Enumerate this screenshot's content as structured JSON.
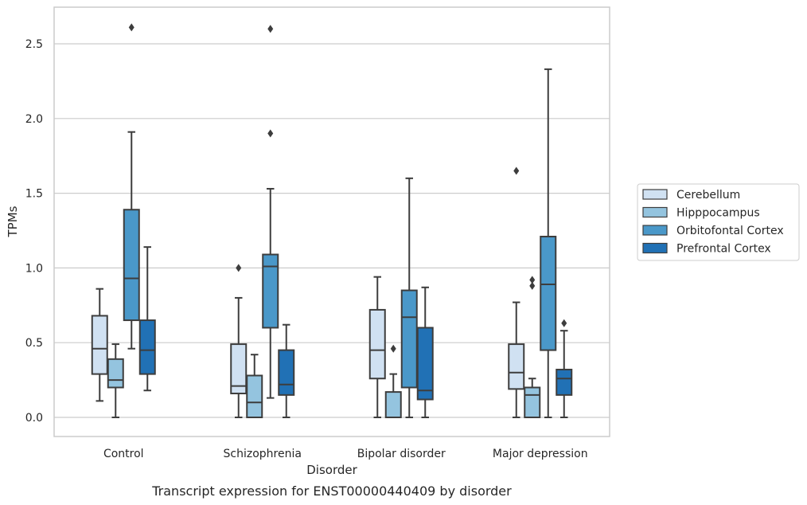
{
  "chart_data": {
    "type": "box",
    "xlabel": "Disorder",
    "ylabel": "TPMs",
    "caption": "Transcript expression for ENST00000440409 by disorder",
    "categories": [
      "Control",
      "Schizophrenia",
      "Bipolar disorder",
      "Major depression"
    ],
    "ylim": [
      -0.13,
      2.75
    ],
    "yticks": [
      0.0,
      0.5,
      1.0,
      1.5,
      2.0,
      2.5
    ],
    "ytick_labels": [
      "0.0",
      "0.5",
      "1.0",
      "1.5",
      "2.0",
      "2.5"
    ],
    "grid": "horizontal",
    "legend_position": "right",
    "series": [
      {
        "name": "Cerebellum",
        "color": "#d0e1f2",
        "boxes": [
          {
            "whisker_low": 0.11,
            "q1": 0.29,
            "median": 0.46,
            "q3": 0.68,
            "whisker_high": 0.86,
            "outliers": []
          },
          {
            "whisker_low": 0.0,
            "q1": 0.16,
            "median": 0.21,
            "q3": 0.49,
            "whisker_high": 0.8,
            "outliers": [
              1.0
            ]
          },
          {
            "whisker_low": 0.0,
            "q1": 0.26,
            "median": 0.45,
            "q3": 0.72,
            "whisker_high": 0.94,
            "outliers": []
          },
          {
            "whisker_low": 0.0,
            "q1": 0.19,
            "median": 0.3,
            "q3": 0.49,
            "whisker_high": 0.77,
            "outliers": [
              1.65
            ]
          }
        ]
      },
      {
        "name": "Hipppocampus",
        "color": "#94c4df",
        "boxes": [
          {
            "whisker_low": 0.0,
            "q1": 0.2,
            "median": 0.25,
            "q3": 0.39,
            "whisker_high": 0.49,
            "outliers": []
          },
          {
            "whisker_low": 0.0,
            "q1": 0.0,
            "median": 0.1,
            "q3": 0.28,
            "whisker_high": 0.42,
            "outliers": []
          },
          {
            "whisker_low": 0.0,
            "q1": 0.0,
            "median": 0.0,
            "q3": 0.17,
            "whisker_high": 0.29,
            "outliers": [
              0.46
            ]
          },
          {
            "whisker_low": 0.0,
            "q1": 0.0,
            "median": 0.15,
            "q3": 0.2,
            "whisker_high": 0.26,
            "outliers": [
              0.88,
              0.92
            ]
          }
        ]
      },
      {
        "name": "Orbitofontal Cortex",
        "color": "#4a98c9",
        "boxes": [
          {
            "whisker_low": 0.46,
            "q1": 0.65,
            "median": 0.93,
            "q3": 1.39,
            "whisker_high": 1.91,
            "outliers": [
              2.61
            ]
          },
          {
            "whisker_low": 0.13,
            "q1": 0.6,
            "median": 1.01,
            "q3": 1.09,
            "whisker_high": 1.53,
            "outliers": [
              1.9,
              2.6
            ]
          },
          {
            "whisker_low": 0.0,
            "q1": 0.2,
            "median": 0.67,
            "q3": 0.85,
            "whisker_high": 1.6,
            "outliers": []
          },
          {
            "whisker_low": 0.0,
            "q1": 0.45,
            "median": 0.89,
            "q3": 1.21,
            "whisker_high": 2.33,
            "outliers": []
          }
        ]
      },
      {
        "name": "Prefrontal Cortex",
        "color": "#2171b5",
        "boxes": [
          {
            "whisker_low": 0.18,
            "q1": 0.29,
            "median": 0.45,
            "q3": 0.65,
            "whisker_high": 1.14,
            "outliers": []
          },
          {
            "whisker_low": 0.0,
            "q1": 0.15,
            "median": 0.22,
            "q3": 0.45,
            "whisker_high": 0.62,
            "outliers": []
          },
          {
            "whisker_low": 0.0,
            "q1": 0.12,
            "median": 0.18,
            "q3": 0.6,
            "whisker_high": 0.87,
            "outliers": []
          },
          {
            "whisker_low": 0.0,
            "q1": 0.15,
            "median": 0.26,
            "q3": 0.32,
            "whisker_high": 0.58,
            "outliers": [
              0.63
            ]
          }
        ]
      }
    ],
    "colors": {
      "box_edge": "#3d3d3d",
      "grid": "#cccccc",
      "frame": "#cccccc"
    }
  }
}
